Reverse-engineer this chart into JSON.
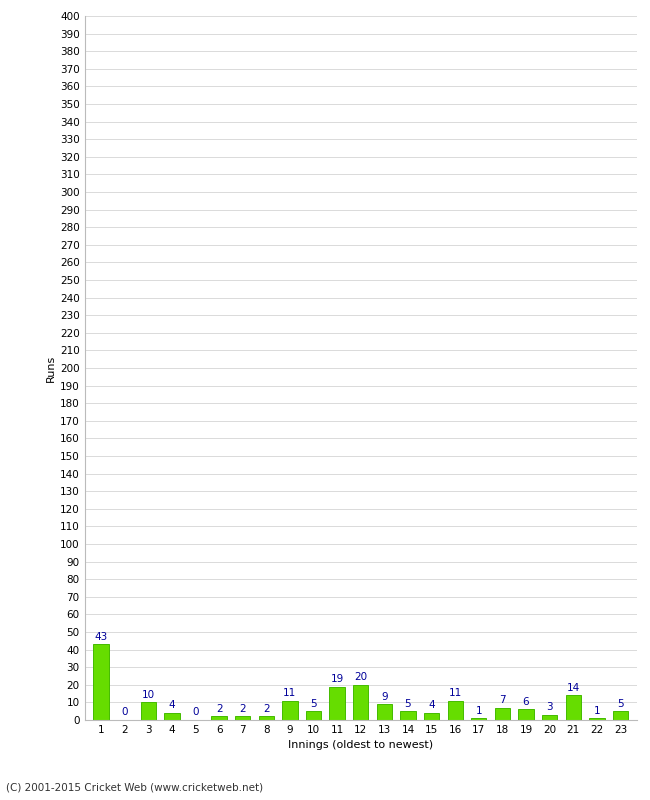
{
  "innings": [
    1,
    2,
    3,
    4,
    5,
    6,
    7,
    8,
    9,
    10,
    11,
    12,
    13,
    14,
    15,
    16,
    17,
    18,
    19,
    20,
    21,
    22,
    23
  ],
  "runs": [
    43,
    0,
    10,
    4,
    0,
    2,
    2,
    2,
    11,
    5,
    19,
    20,
    9,
    5,
    4,
    11,
    1,
    7,
    6,
    3,
    14,
    1,
    5
  ],
  "bar_color": "#66dd00",
  "bar_edge_color": "#44bb00",
  "label_color": "#000099",
  "xlabel": "Innings (oldest to newest)",
  "ylabel": "Runs",
  "ylim": [
    0,
    400
  ],
  "background_color": "#ffffff",
  "grid_color": "#cccccc",
  "footer": "(C) 2001-2015 Cricket Web (www.cricketweb.net)"
}
